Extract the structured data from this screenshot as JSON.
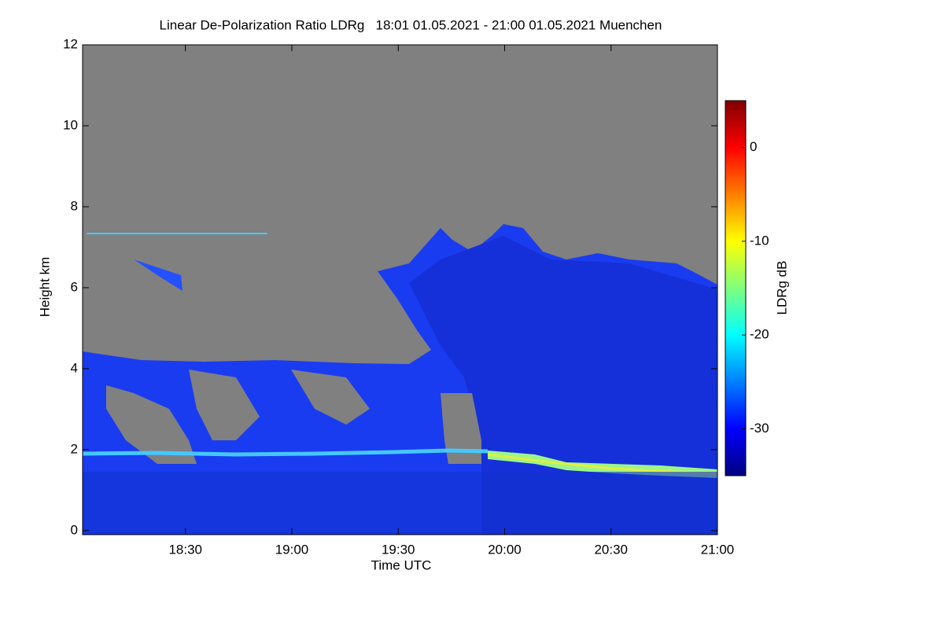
{
  "chart_data": {
    "type": "heatmap",
    "title": "Linear De-Polarization Ratio LDRg   18:01 01.05.2021 - 21:00 01.05.2021 Muenchen",
    "xlabel": "Time UTC",
    "ylabel": "Height km",
    "xlim": [
      1081,
      1260
    ],
    "xticks": [
      {
        "value": 1110,
        "label": "18:30"
      },
      {
        "value": 1140,
        "label": "19:00"
      },
      {
        "value": 1170,
        "label": "19:30"
      },
      {
        "value": 1200,
        "label": "20:00"
      },
      {
        "value": 1230,
        "label": "20:30"
      },
      {
        "value": 1260,
        "label": "21:00"
      }
    ],
    "ylim": [
      -0.1,
      12
    ],
    "yticks": [
      0,
      2,
      4,
      6,
      8,
      10,
      12
    ],
    "colorbar": {
      "label": "LDRg dB",
      "lim": [
        -35,
        5
      ],
      "ticks": [
        0,
        -10,
        -20,
        -30
      ],
      "colormap": "jet"
    }
  }
}
